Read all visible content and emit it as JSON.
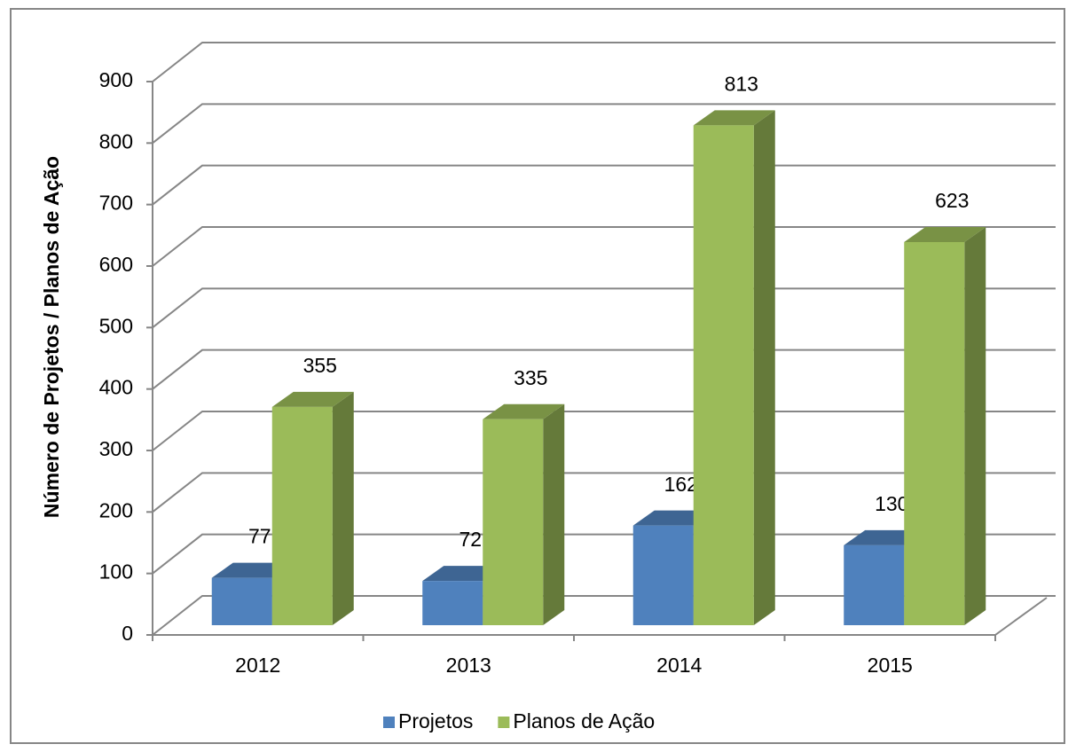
{
  "chart_data": {
    "type": "bar3d",
    "y_label": "Número de Projetos / Planos de Ação",
    "categories": [
      "2012",
      "2013",
      "2014",
      "2015"
    ],
    "series": [
      {
        "name": "Projetos",
        "color": "#4f81bd",
        "values": [
          77,
          72,
          162,
          130
        ]
      },
      {
        "name": "Planos de Ação",
        "color": "#9bbb59",
        "values": [
          355,
          335,
          813,
          623
        ]
      }
    ],
    "ylim": [
      0,
      900
    ],
    "yticks": [
      0,
      100,
      200,
      300,
      400,
      500,
      600,
      700,
      800,
      900
    ],
    "grid": true,
    "legend": "bottom"
  }
}
